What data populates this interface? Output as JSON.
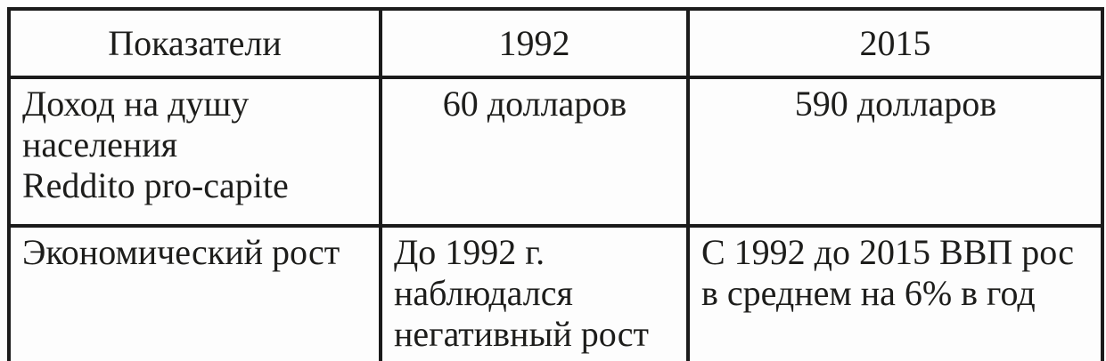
{
  "table": {
    "columns": [
      {
        "header": "Показатели"
      },
      {
        "header": "1992"
      },
      {
        "header": "2015"
      }
    ],
    "rows": [
      {
        "indicator": "Доход на душу\nнаселения\nReddito pro-capite",
        "y1992": "60 долларов",
        "y2015": "590 долларов"
      },
      {
        "indicator": "Экономический рост",
        "y1992": "До 1992 г.\nнаблюдался\nнегативный рост",
        "y2015": "С 1992 до 2015 ВВП рос\nв среднем на 6% в год"
      }
    ],
    "colors": {
      "border": "#1b1b1b",
      "text": "#1d1d1b",
      "background": "#fdfdfd"
    }
  }
}
